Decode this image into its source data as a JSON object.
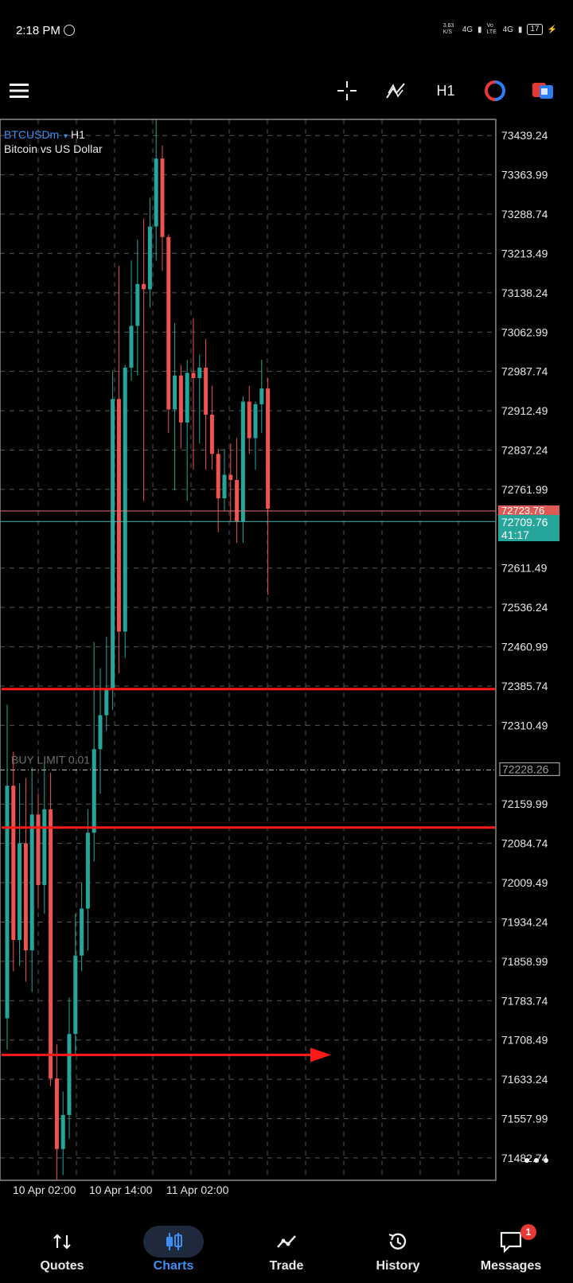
{
  "status_bar": {
    "time": "2:18 PM",
    "network_speed": "3.63 K/S",
    "net1": "4G",
    "volte": "Vo LTE",
    "net2": "4G",
    "battery": "17"
  },
  "toolbar": {
    "timeframe": "H1"
  },
  "chart": {
    "symbol": "BTCUSDm",
    "timeframe": "H1",
    "description": "Bitcoin vs US Dollar",
    "order_label": "BUY LIMIT 0.01",
    "order_price": "72228.26",
    "bid_label": "72723.76",
    "ask_label": "72709.76",
    "countdown": "41:17",
    "colors": {
      "bull": "#26a69a",
      "bear": "#ef5350",
      "bg": "#000000",
      "grid": "#555555",
      "user_lines": "#ff1a1a"
    },
    "more_icon": "more-horizontal-icon"
  },
  "chart_data": {
    "type": "candlestick",
    "price_axis_labels": [
      "73439.24",
      "73363.99",
      "73288.74",
      "73213.49",
      "73138.24",
      "73062.99",
      "72987.74",
      "72912.49",
      "72837.24",
      "72761.99",
      "72611.49",
      "72536.24",
      "72460.99",
      "72385.74",
      "72310.49",
      "72159.99",
      "72084.74",
      "72009.49",
      "71934.24",
      "71858.99",
      "71783.74",
      "71708.49",
      "71633.24",
      "71557.99",
      "71482.74"
    ],
    "time_axis_labels": [
      "10 Apr 02:00",
      "10 Apr 14:00",
      "11 Apr 02:00"
    ],
    "ylim": [
      71440,
      73470
    ],
    "horizontal_lines": [
      72380,
      72115
    ],
    "arrow_level": 71680,
    "candles": [
      {
        "o": 71750,
        "h": 72350,
        "l": 71690,
        "c": 72195
      },
      {
        "o": 72195,
        "h": 72260,
        "l": 71840,
        "c": 71900
      },
      {
        "o": 71900,
        "h": 72200,
        "l": 71850,
        "c": 72085
      },
      {
        "o": 72085,
        "h": 72210,
        "l": 71820,
        "c": 71880
      },
      {
        "o": 71880,
        "h": 72230,
        "l": 71800,
        "c": 72140
      },
      {
        "o": 72140,
        "h": 72180,
        "l": 71960,
        "c": 72005
      },
      {
        "o": 72005,
        "h": 72240,
        "l": 71950,
        "c": 72150
      },
      {
        "o": 72150,
        "h": 72220,
        "l": 71620,
        "c": 71635
      },
      {
        "o": 71635,
        "h": 71700,
        "l": 71440,
        "c": 71500
      },
      {
        "o": 71500,
        "h": 71610,
        "l": 71450,
        "c": 71565
      },
      {
        "o": 71565,
        "h": 71790,
        "l": 71520,
        "c": 71720
      },
      {
        "o": 71720,
        "h": 71950,
        "l": 71680,
        "c": 71870
      },
      {
        "o": 71870,
        "h": 72010,
        "l": 71840,
        "c": 71960
      },
      {
        "o": 71960,
        "h": 72150,
        "l": 71880,
        "c": 72105
      },
      {
        "o": 72105,
        "h": 72470,
        "l": 72050,
        "c": 72265
      },
      {
        "o": 72265,
        "h": 72420,
        "l": 72180,
        "c": 72330
      },
      {
        "o": 72330,
        "h": 72480,
        "l": 72300,
        "c": 72380
      },
      {
        "o": 72380,
        "h": 72990,
        "l": 72340,
        "c": 72935
      },
      {
        "o": 72935,
        "h": 73190,
        "l": 72410,
        "c": 72490
      },
      {
        "o": 72490,
        "h": 73000,
        "l": 72440,
        "c": 72995
      },
      {
        "o": 72995,
        "h": 73200,
        "l": 72970,
        "c": 73075
      },
      {
        "o": 73075,
        "h": 73240,
        "l": 72980,
        "c": 73155
      },
      {
        "o": 73155,
        "h": 73280,
        "l": 72740,
        "c": 73145
      },
      {
        "o": 73145,
        "h": 73320,
        "l": 73110,
        "c": 73265
      },
      {
        "o": 73265,
        "h": 73470,
        "l": 73200,
        "c": 73395
      },
      {
        "o": 73395,
        "h": 73420,
        "l": 73180,
        "c": 73245
      },
      {
        "o": 73245,
        "h": 73250,
        "l": 72870,
        "c": 72915
      },
      {
        "o": 72915,
        "h": 73080,
        "l": 72760,
        "c": 72980
      },
      {
        "o": 72980,
        "h": 73000,
        "l": 72840,
        "c": 72890
      },
      {
        "o": 72890,
        "h": 73010,
        "l": 72740,
        "c": 72985
      },
      {
        "o": 72985,
        "h": 73090,
        "l": 72800,
        "c": 72975
      },
      {
        "o": 72975,
        "h": 73020,
        "l": 72850,
        "c": 72995
      },
      {
        "o": 72995,
        "h": 73050,
        "l": 72800,
        "c": 72905
      },
      {
        "o": 72905,
        "h": 72960,
        "l": 72800,
        "c": 72830
      },
      {
        "o": 72830,
        "h": 72840,
        "l": 72680,
        "c": 72745
      },
      {
        "o": 72745,
        "h": 72840,
        "l": 72720,
        "c": 72790
      },
      {
        "o": 72790,
        "h": 72850,
        "l": 72700,
        "c": 72780
      },
      {
        "o": 72780,
        "h": 72860,
        "l": 72660,
        "c": 72700
      },
      {
        "o": 72700,
        "h": 72940,
        "l": 72660,
        "c": 72930
      },
      {
        "o": 72930,
        "h": 72960,
        "l": 72830,
        "c": 72860
      },
      {
        "o": 72860,
        "h": 72930,
        "l": 72800,
        "c": 72925
      },
      {
        "o": 72925,
        "h": 73010,
        "l": 72870,
        "c": 72955
      },
      {
        "o": 72955,
        "h": 72975,
        "l": 72560,
        "c": 72725
      }
    ]
  },
  "nav": {
    "tabs": [
      {
        "label": "Quotes",
        "icon": "quotes-arrows-icon"
      },
      {
        "label": "Charts",
        "icon": "candlestick-icon"
      },
      {
        "label": "Trade",
        "icon": "trade-line-icon"
      },
      {
        "label": "History",
        "icon": "history-clock-icon"
      },
      {
        "label": "Messages",
        "icon": "messages-chat-icon",
        "badge": "1"
      }
    ]
  }
}
